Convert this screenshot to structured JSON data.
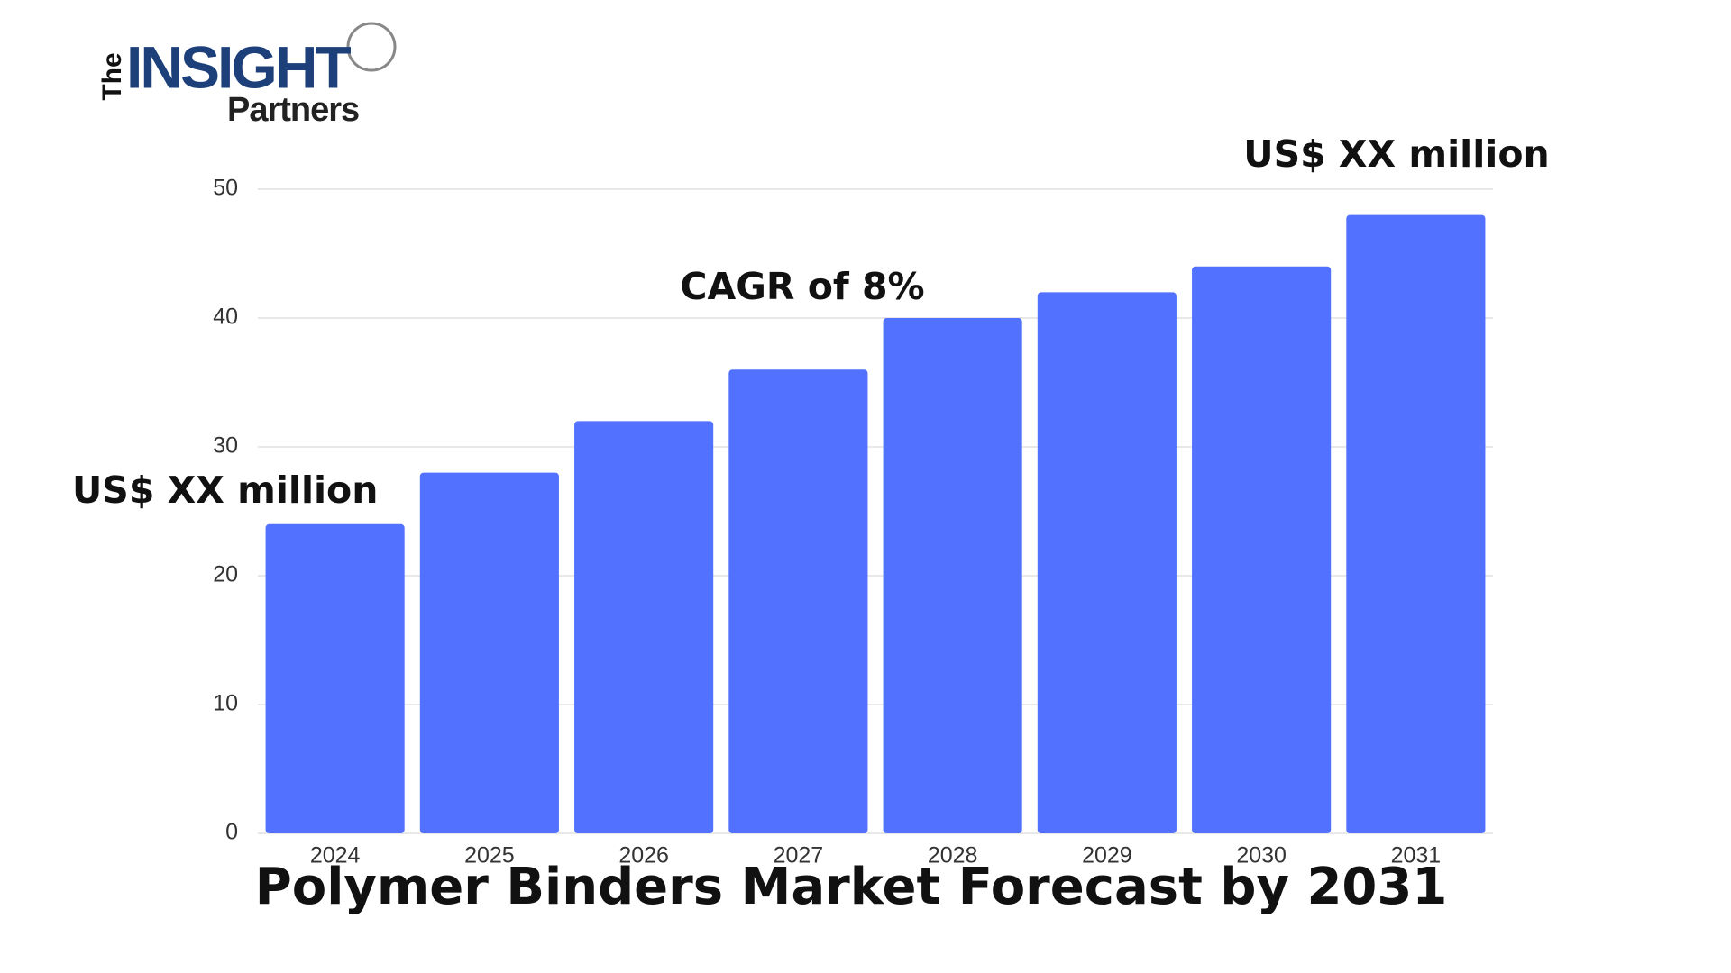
{
  "logo": {
    "the": "The",
    "insight": "INSIGHT",
    "partners": "Partners"
  },
  "chart_data": {
    "type": "bar",
    "title": "Polymer Binders Market Forecast by 2031",
    "categories": [
      "2024",
      "2025",
      "2026",
      "2027",
      "2028",
      "2029",
      "2030",
      "2031"
    ],
    "values": [
      24,
      28,
      32,
      36,
      40,
      42,
      44,
      48
    ],
    "color": "#5271ff",
    "ylim": [
      0,
      50
    ],
    "yticks": [
      0,
      10,
      20,
      30,
      40,
      50
    ],
    "grid": true,
    "annotations": [
      "US$ XX million",
      "CAGR of 8%",
      "US$ XX million"
    ]
  }
}
